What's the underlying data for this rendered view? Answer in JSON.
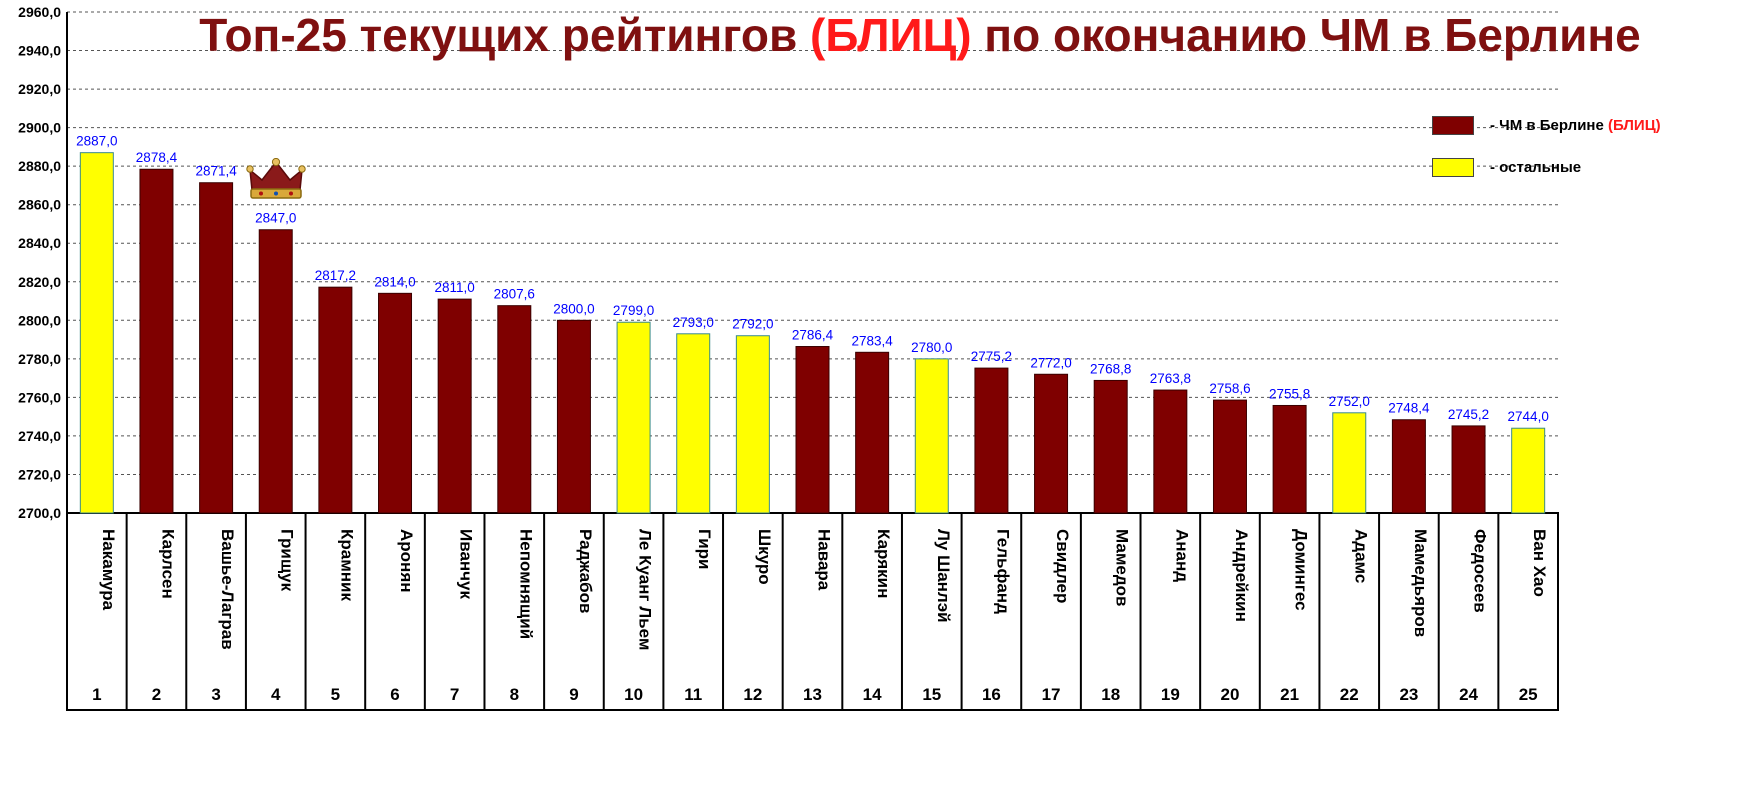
{
  "title": {
    "prefix": "Топ-25 текущих рейтингов ",
    "highlight": "(БЛИЦ)",
    "suffix": " по окончанию ЧМ в Берлине"
  },
  "legend": {
    "items": [
      {
        "prefix": " - ЧМ в Берлине ",
        "highlight": "(БЛИЦ)",
        "color": "#7f0000"
      },
      {
        "prefix": " - остальные",
        "highlight": "",
        "color": "#ffff00"
      }
    ]
  },
  "colors": {
    "berlin": "#7f0000",
    "others": "#ffff00",
    "value_label": "#0000ff"
  },
  "icons": {
    "crown": "crown-icon"
  },
  "chart_data": {
    "type": "bar",
    "ylim": [
      2700,
      2960
    ],
    "y_ticks": [
      "2700,0",
      "2720,0",
      "2740,0",
      "2760,0",
      "2780,0",
      "2800,0",
      "2820,0",
      "2840,0",
      "2860,0",
      "2880,0",
      "2900,0",
      "2920,0",
      "2940,0",
      "2960,0"
    ],
    "grid": true,
    "legend_position": "top-right",
    "bars": [
      {
        "rank": "1",
        "name": "Накамура",
        "value": 2887.0,
        "label": "2887,0",
        "group": "others"
      },
      {
        "rank": "2",
        "name": "Карлсен",
        "value": 2878.4,
        "label": "2878,4",
        "group": "berlin"
      },
      {
        "rank": "3",
        "name": "Вашье-Лаграв",
        "value": 2871.4,
        "label": "2871,4",
        "group": "berlin"
      },
      {
        "rank": "4",
        "name": "Грищук",
        "value": 2847.0,
        "label": "2847,0",
        "group": "berlin",
        "crown": true
      },
      {
        "rank": "5",
        "name": "Крамник",
        "value": 2817.2,
        "label": "2817,2",
        "group": "berlin"
      },
      {
        "rank": "6",
        "name": "Аронян",
        "value": 2814.0,
        "label": "2814,0",
        "group": "berlin"
      },
      {
        "rank": "7",
        "name": "Иванчук",
        "value": 2811.0,
        "label": "2811,0",
        "group": "berlin"
      },
      {
        "rank": "8",
        "name": "Непомнящий",
        "value": 2807.6,
        "label": "2807,6",
        "group": "berlin"
      },
      {
        "rank": "9",
        "name": "Раджабов",
        "value": 2800.0,
        "label": "2800,0",
        "group": "berlin"
      },
      {
        "rank": "10",
        "name": "Ле Куанг Льем",
        "value": 2799.0,
        "label": "2799,0",
        "group": "others"
      },
      {
        "rank": "11",
        "name": "Гири",
        "value": 2793.0,
        "label": "2793,0",
        "group": "others"
      },
      {
        "rank": "12",
        "name": "Шкуро",
        "value": 2792.0,
        "label": "2792,0",
        "group": "others"
      },
      {
        "rank": "13",
        "name": "Навара",
        "value": 2786.4,
        "label": "2786,4",
        "group": "berlin"
      },
      {
        "rank": "14",
        "name": "Карякин",
        "value": 2783.4,
        "label": "2783,4",
        "group": "berlin"
      },
      {
        "rank": "15",
        "name": "Лу Шанлэй",
        "value": 2780.0,
        "label": "2780,0",
        "group": "others"
      },
      {
        "rank": "16",
        "name": "Гельфанд",
        "value": 2775.2,
        "label": "2775,2",
        "group": "berlin"
      },
      {
        "rank": "17",
        "name": "Свидлер",
        "value": 2772.0,
        "label": "2772,0",
        "group": "berlin"
      },
      {
        "rank": "18",
        "name": "Мамедов",
        "value": 2768.8,
        "label": "2768,8",
        "group": "berlin"
      },
      {
        "rank": "19",
        "name": "Ананд",
        "value": 2763.8,
        "label": "2763,8",
        "group": "berlin"
      },
      {
        "rank": "20",
        "name": "Андрейкин",
        "value": 2758.6,
        "label": "2758,6",
        "group": "berlin"
      },
      {
        "rank": "21",
        "name": "Домингес",
        "value": 2755.8,
        "label": "2755,8",
        "group": "berlin"
      },
      {
        "rank": "22",
        "name": "Адамс",
        "value": 2752.0,
        "label": "2752,0",
        "group": "others"
      },
      {
        "rank": "23",
        "name": "Мамедьяров",
        "value": 2748.4,
        "label": "2748,4",
        "group": "berlin"
      },
      {
        "rank": "24",
        "name": "Федосеев",
        "value": 2745.2,
        "label": "2745,2",
        "group": "berlin"
      },
      {
        "rank": "25",
        "name": "Ван Хао",
        "value": 2744.0,
        "label": "2744,0",
        "group": "others"
      }
    ]
  }
}
